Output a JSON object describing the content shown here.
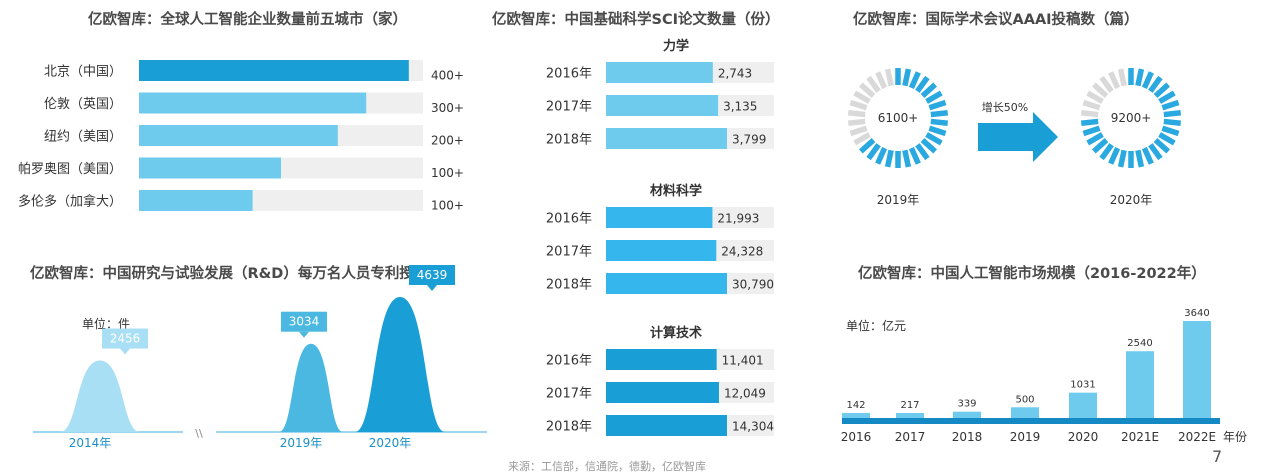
{
  "colors": {
    "dark": "#1a9ed6",
    "mid": "#4ab8e6",
    "light": "#6fcbee",
    "lighter": "#a9dff5",
    "track": "#efefef",
    "ring_off": "#d9d9d9"
  },
  "chart_data": [
    {
      "id": "cities",
      "type": "bar",
      "title": "亿欧智库：全球人工智能企业数量前五城市（家）",
      "categories": [
        "北京（中国）",
        "伦敦（英国）",
        "纽约（美国）",
        "帕罗奥图（美国）",
        "多伦多（加拿大）"
      ],
      "values": [
        400,
        300,
        200,
        100,
        100
      ],
      "value_labels": [
        "400+",
        "300+",
        "200+",
        "100+",
        "100+"
      ],
      "bar_fraction": [
        0.95,
        0.8,
        0.7,
        0.5,
        0.4
      ]
    },
    {
      "id": "sci",
      "type": "bar",
      "title": "亿欧智库：中国基础科学SCI论文数量（份）",
      "groups": [
        {
          "name": "力学",
          "categories": [
            "2016年",
            "2017年",
            "2018年"
          ],
          "values": [
            2743,
            3135,
            3799
          ],
          "labels": [
            "2,743",
            "3,135",
            "3,799"
          ]
        },
        {
          "name": "材料科学",
          "categories": [
            "2016年",
            "2017年",
            "2018年"
          ],
          "values": [
            21993,
            24328,
            30790
          ],
          "labels": [
            "21,993",
            "24,328",
            "30,790"
          ]
        },
        {
          "name": "计算技术",
          "categories": [
            "2016年",
            "2017年",
            "2018年"
          ],
          "values": [
            11401,
            12049,
            14304
          ],
          "labels": [
            "11,401",
            "12,049",
            "14,304"
          ]
        }
      ]
    },
    {
      "id": "aaai",
      "type": "pie",
      "title": "亿欧智库：国际学术会议AAAI投稿数（篇）",
      "items": [
        {
          "label": "6100+",
          "year": "2019年"
        },
        {
          "label": "9200+",
          "year": "2020年"
        }
      ],
      "arrow_label": "增长50%"
    },
    {
      "id": "rd",
      "type": "area",
      "title": "亿欧智库：中国研究与试验发展（R&D）每万名人员专利授权数",
      "unit": "单位：件",
      "x": [
        "2014年",
        "2019年",
        "2020年"
      ],
      "values": [
        2456,
        3034,
        4639
      ],
      "labels": [
        "2456",
        "3034",
        "4639"
      ],
      "break_mark": "\\\\"
    },
    {
      "id": "market",
      "type": "bar",
      "title": "亿欧智库：中国人工智能市场规模（2016-2022年）",
      "unit": "单位：亿元",
      "xlabel": "年份",
      "categories": [
        "2016",
        "2017",
        "2018",
        "2019",
        "2020",
        "2021E",
        "2022E"
      ],
      "values": [
        142,
        217,
        339,
        500,
        1031,
        2540,
        3640
      ],
      "labels": [
        "142",
        "217",
        "339",
        "500",
        "1031",
        "2540",
        "3640"
      ]
    }
  ],
  "footnote": "来源：工信部，信通院，德勤，亿欧智库",
  "page_number": "7"
}
